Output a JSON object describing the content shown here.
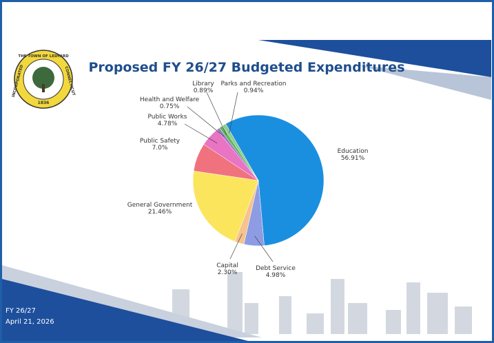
{
  "chart_data": {
    "type": "pie",
    "title": "Proposed FY 26/27 Budgeted Expenditures",
    "categories": [
      "Education",
      "Debt Service",
      "Capital",
      "General Government",
      "Public Safety",
      "Public Works",
      "Health and Welfare",
      "Library",
      "Parks and Recreation"
    ],
    "values": [
      56.91,
      4.98,
      2.3,
      21.46,
      7.0,
      4.78,
      0.75,
      0.89,
      0.94
    ],
    "value_labels": [
      "56.91%",
      "4.98%",
      "2.30%",
      "21.46%",
      "7.0%",
      "4.78%",
      "0.75%",
      "0.89%",
      "0.94%"
    ],
    "colors": [
      "#1a8fe0",
      "#8d9ce3",
      "#f6c28d",
      "#fbe55c",
      "#f0727f",
      "#e874c3",
      "#9e78c8",
      "#5cb85c",
      "#8fcb8f"
    ]
  },
  "footer": {
    "line1": "FY 26/27",
    "line2": "April 21, 2026"
  },
  "logo": {
    "top": "THE TOWN OF LEDYARD",
    "right": "CONNECTICUT",
    "left": "INCORPORATED",
    "year": "1836"
  }
}
